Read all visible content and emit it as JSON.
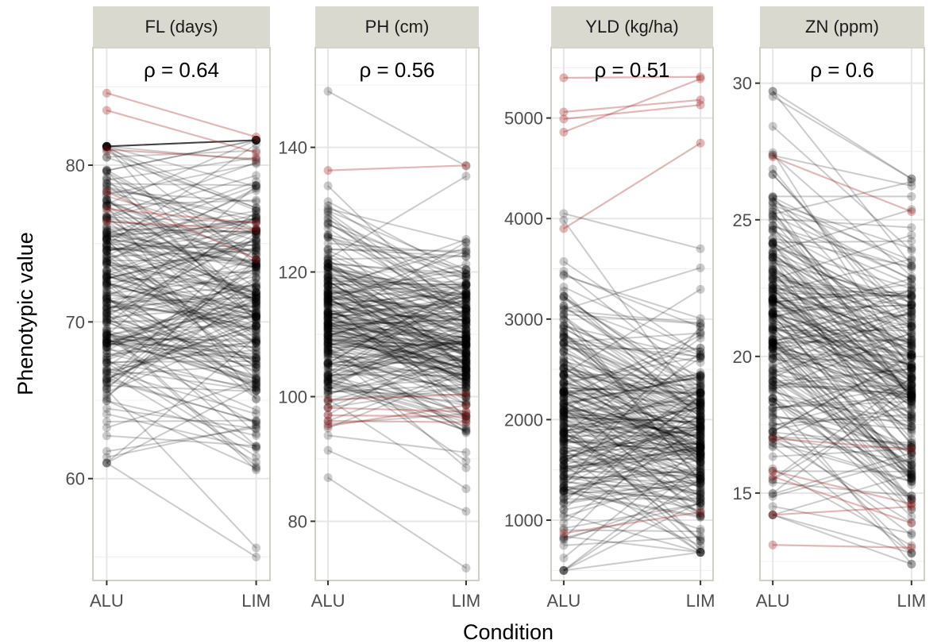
{
  "chart_data": {
    "type": "line",
    "xlabel": "Condition",
    "ylabel": "Phenotypic value",
    "categories": [
      "ALU",
      "LIM"
    ],
    "colors": {
      "normal": "#000000",
      "highlight": "#a01010",
      "strip": "#d9d9d0"
    },
    "panels": [
      {
        "title": "FL (days)",
        "rho_label": "ρ = 0.64",
        "ylim": [
          53.5,
          87.5
        ],
        "yticks": [
          60,
          70,
          80
        ],
        "seed": 11,
        "n_lines": 230,
        "alu_range": [
          61,
          81.2
        ],
        "lim_range": [
          55,
          81.6
        ],
        "alu_center": 72,
        "alu_spread": 4.5,
        "lim_center": 71,
        "lim_spread": 5,
        "correlation": 0.64,
        "highlighted": [
          [
            84.6,
            81.8
          ],
          [
            83.5,
            80.8
          ],
          [
            81.0,
            80.4
          ],
          [
            78.3,
            74.0
          ],
          [
            77.2,
            76.3
          ],
          [
            76.4,
            75.9
          ]
        ]
      },
      {
        "title": "PH (cm)",
        "rho_label": "ρ = 0.56",
        "ylim": [
          70.5,
          156
        ],
        "yticks": [
          80,
          100,
          120,
          140
        ],
        "seed": 23,
        "n_lines": 230,
        "alu_range": [
          87,
          149
        ],
        "lim_range": [
          72.5,
          137
        ],
        "alu_center": 112,
        "alu_spread": 8,
        "lim_center": 108,
        "lim_spread": 8,
        "correlation": 0.56,
        "highlighted": [
          [
            136.3,
            137.1
          ],
          [
            99.5,
            100.4
          ],
          [
            98.2,
            97.6
          ],
          [
            97.0,
            96.8
          ],
          [
            96.1,
            95.9
          ],
          [
            95.3,
            98.6
          ]
        ]
      },
      {
        "title": "YLD (kg/ha)",
        "rho_label": "ρ = 0.51",
        "ylim": [
          400,
          5700
        ],
        "yticks": [
          1000,
          2000,
          3000,
          4000,
          5000
        ],
        "seed": 37,
        "n_lines": 230,
        "alu_range": [
          500,
          4050
        ],
        "lim_range": [
          680,
          3700
        ],
        "alu_center": 2100,
        "alu_spread": 650,
        "lim_center": 1850,
        "lim_spread": 520,
        "correlation": 0.51,
        "highlighted": [
          [
            5400,
            5410
          ],
          [
            5060,
            5180
          ],
          [
            4990,
            5130
          ],
          [
            4860,
            5390
          ],
          [
            3900,
            4750
          ],
          [
            870,
            1080
          ]
        ]
      },
      {
        "title": "ZN (ppm)",
        "rho_label": "ρ = 0.6",
        "ylim": [
          11.8,
          31.3
        ],
        "yticks": [
          15,
          20,
          25,
          30
        ],
        "seed": 53,
        "n_lines": 230,
        "alu_range": [
          14.2,
          29.7
        ],
        "lim_range": [
          12.4,
          26.5
        ],
        "alu_center": 21,
        "alu_spread": 2.8,
        "lim_center": 19,
        "lim_spread": 2.6,
        "correlation": 0.6,
        "highlighted": [
          [
            27.3,
            25.3
          ],
          [
            15.8,
            14.6
          ],
          [
            15.6,
            13.9
          ],
          [
            14.2,
            14.5
          ],
          [
            13.1,
            13.0
          ],
          [
            17.0,
            16.6
          ]
        ]
      }
    ]
  }
}
